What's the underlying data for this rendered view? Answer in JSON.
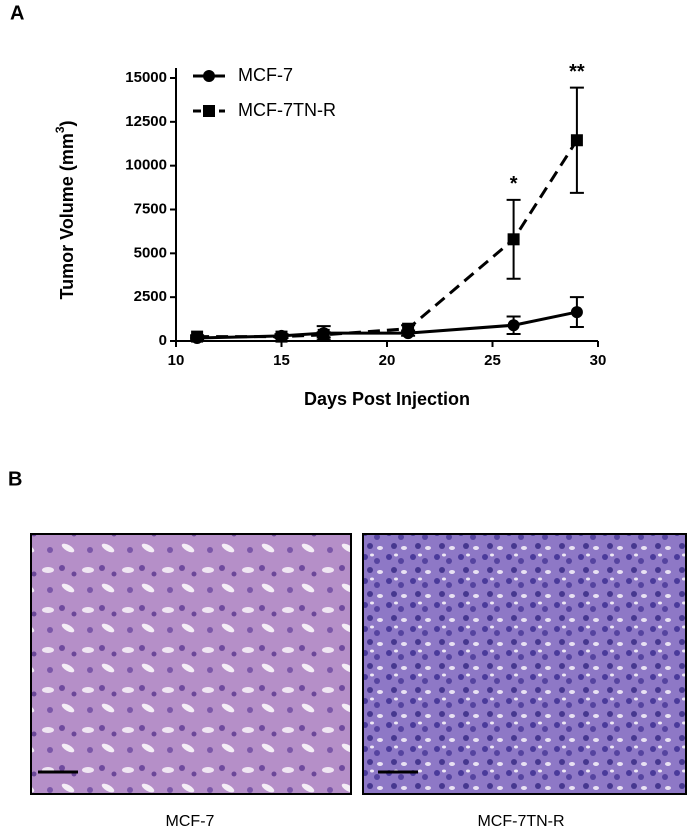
{
  "panels": {
    "a": "A",
    "b": "B"
  },
  "chart_data": {
    "type": "line",
    "x_label": "Days Post Injection",
    "y_label": {
      "text": "Tumor Volume  (mm",
      "sup": "3",
      "after": ")"
    },
    "xlim": [
      10,
      30
    ],
    "xticks": [
      10,
      15,
      20,
      25,
      30
    ],
    "ylim": [
      0,
      15000
    ],
    "yticks": [
      0,
      2500,
      5000,
      7500,
      10000,
      12500,
      15000
    ],
    "legend": "top-left",
    "series": [
      {
        "name": "MCF-7",
        "color": "#000000",
        "marker": "circle",
        "dashed": false,
        "x": [
          11,
          15,
          17,
          21,
          26,
          29
        ],
        "values": [
          170,
          290,
          450,
          450,
          900,
          1650
        ],
        "errors": [
          80,
          100,
          400,
          150,
          500,
          850
        ]
      },
      {
        "name": "MCF-7TN-R",
        "color": "#000000",
        "marker": "square",
        "dashed": true,
        "x": [
          11,
          15,
          17,
          21,
          26,
          29
        ],
        "values": [
          250,
          250,
          350,
          700,
          5800,
          11450
        ],
        "errors": [
          80,
          80,
          150,
          200,
          2250,
          3000
        ]
      }
    ],
    "annotations": [
      {
        "x": 26,
        "y": 8900,
        "text": "*"
      },
      {
        "x": 29,
        "y": 15300,
        "text": "**"
      }
    ]
  },
  "images": [
    {
      "caption": "MCF-7"
    },
    {
      "caption": "MCF-7TN-R"
    }
  ]
}
